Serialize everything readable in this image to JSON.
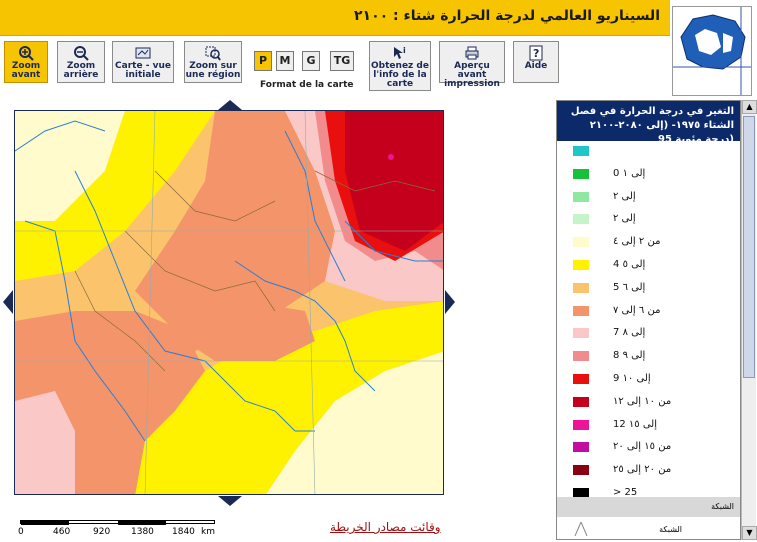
{
  "title": "السيناريو العالمي لدرجة الحرارة شتاء : ٢١٠٠",
  "toolbar": {
    "zoom_in": "Zoom avant",
    "zoom_out": "Zoom arrière",
    "initial_map": "Carte - vue initiale",
    "zoom_region": "Zoom sur une région",
    "format_label": "Format de la carte",
    "formats": [
      "P",
      "M",
      "G",
      "TG"
    ],
    "selected_format": "P",
    "info": "Obtenez de l'info de la carte",
    "print_preview": "Aperçu avant impression",
    "help": "Aide"
  },
  "scale": {
    "ticks": [
      "0",
      "460",
      "920",
      "1380",
      "1840",
      "km"
    ]
  },
  "map_sources_link": "وقائت مصادر الخريطة",
  "legend": {
    "title": "التغير في درجة الحرارة في فصل الشتاء ١٩٧٥- (إلى ٢٠٨٠-٢١٠٠ (درجة مئوية 95",
    "items": [
      {
        "color": "#1fc7c7",
        "label": ""
      },
      {
        "color": "#18c13a",
        "label": "إلى ١ 0"
      },
      {
        "color": "#8ee8a0",
        "label": "إلى ٢"
      },
      {
        "color": "#c6f4c9",
        "label": "إلى ٢"
      },
      {
        "color": "#fffbcc",
        "label": "من ٢ إلى ٤"
      },
      {
        "color": "#fff200",
        "label": "إلى ٥ 4"
      },
      {
        "color": "#fbc36b",
        "label": "إلى ٦ 5"
      },
      {
        "color": "#f4946a",
        "label": "من ٦ إلى ٧"
      },
      {
        "color": "#fbc8c8",
        "label": "إلى ٨ 7"
      },
      {
        "color": "#f28c8c",
        "label": "إلى ٩ 8"
      },
      {
        "color": "#e90f0f",
        "label": "إلى ١٠ 9"
      },
      {
        "color": "#c4001c",
        "label": "من ١٠ إلى ١٢"
      },
      {
        "color": "#ee149a",
        "label": "إلى ١٥ 12"
      },
      {
        "color": "#c20ea0",
        "label": "من ١٥ إلى ٢٠"
      },
      {
        "color": "#8a0010",
        "label": "من ٢٠ إلى ٢٥"
      },
      {
        "color": "#000000",
        "label": "> 25"
      }
    ],
    "section_label": "الشبكة",
    "grid_label": "الشبكة"
  }
}
